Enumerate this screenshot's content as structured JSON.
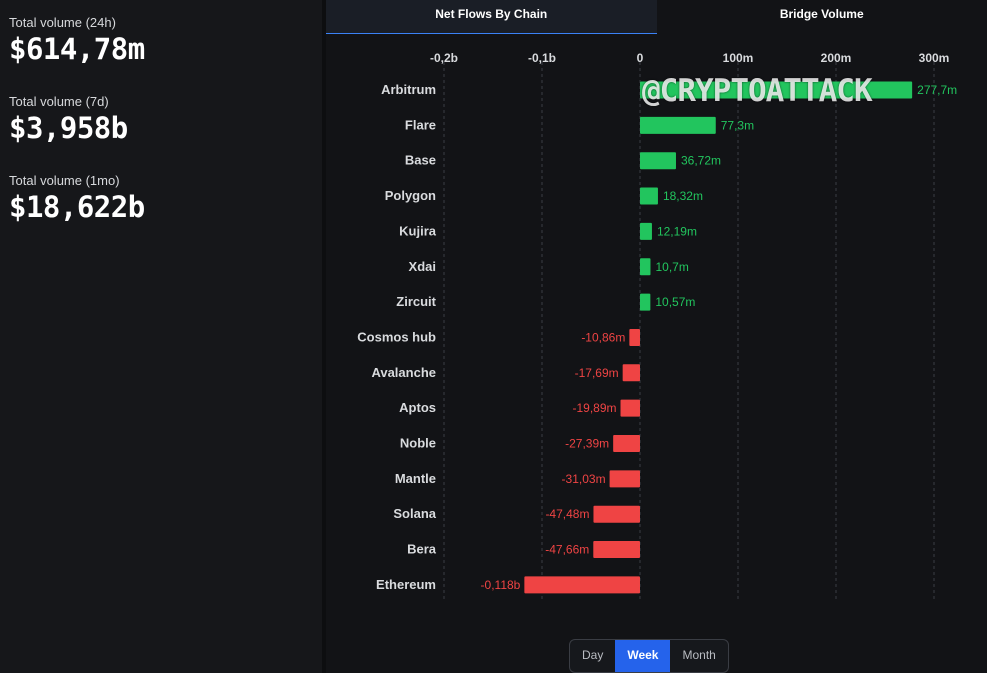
{
  "stats": [
    {
      "label": "Total volume (24h)",
      "value": "$614,78m"
    },
    {
      "label": "Total volume (7d)",
      "value": "$3,958b"
    },
    {
      "label": "Total volume (1mo)",
      "value": "$18,622b"
    }
  ],
  "tabs": [
    {
      "label": "Net Flows By Chain",
      "active": true
    },
    {
      "label": "Bridge Volume",
      "active": false
    }
  ],
  "watermark": "@CRYPTOATTACK",
  "period": {
    "options": [
      "Day",
      "Week",
      "Month"
    ],
    "selected": "Week"
  },
  "colors": {
    "positive": "#22c55e",
    "negative": "#ef4444",
    "accent": "#2563eb"
  },
  "chart_data": {
    "type": "bar",
    "orientation": "horizontal",
    "xlim": [
      -0.2,
      0.31
    ],
    "x_unit": "b",
    "ticks": [
      {
        "value": -0.2,
        "label": "-0,2b"
      },
      {
        "value": -0.1,
        "label": "-0,1b"
      },
      {
        "value": 0,
        "label": "0"
      },
      {
        "value": 0.1,
        "label": "100m"
      },
      {
        "value": 0.2,
        "label": "200m"
      },
      {
        "value": 0.3,
        "label": "300m"
      }
    ],
    "grid": true,
    "categories": [
      "Arbitrum",
      "Flare",
      "Base",
      "Polygon",
      "Kujira",
      "Xdai",
      "Zircuit",
      "Cosmos hub",
      "Avalanche",
      "Aptos",
      "Noble",
      "Mantle",
      "Solana",
      "Bera",
      "Ethereum"
    ],
    "values": [
      0.2777,
      0.0773,
      0.03672,
      0.01832,
      0.01219,
      0.0107,
      0.01057,
      -0.01086,
      -0.01769,
      -0.01989,
      -0.02739,
      -0.03103,
      -0.04748,
      -0.04766,
      -0.118
    ],
    "value_labels": [
      "277,7m",
      "77,3m",
      "36,72m",
      "18,32m",
      "12,19m",
      "10,7m",
      "10,57m",
      "-10,86m",
      "-17,69m",
      "-19,89m",
      "-27,39m",
      "-31,03m",
      "-47,48m",
      "-47,66m",
      "-0,118b"
    ]
  }
}
